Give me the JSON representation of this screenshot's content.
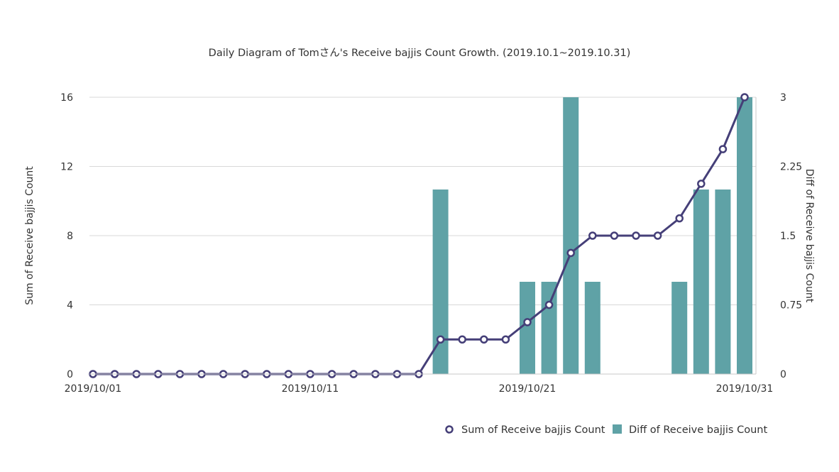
{
  "chart_data": {
    "type": "bar+line",
    "title": "Daily Diagram of Tomさん's Receive bajjis Count Growth. (2019.10.1~2019.10.31)",
    "x": [
      "2019/10/01",
      "2019/10/02",
      "2019/10/03",
      "2019/10/04",
      "2019/10/05",
      "2019/10/06",
      "2019/10/07",
      "2019/10/08",
      "2019/10/09",
      "2019/10/10",
      "2019/10/11",
      "2019/10/12",
      "2019/10/13",
      "2019/10/14",
      "2019/10/15",
      "2019/10/16",
      "2019/10/17",
      "2019/10/18",
      "2019/10/19",
      "2019/10/20",
      "2019/10/21",
      "2019/10/22",
      "2019/10/23",
      "2019/10/24",
      "2019/10/25",
      "2019/10/26",
      "2019/10/27",
      "2019/10/28",
      "2019/10/29",
      "2019/10/30",
      "2019/10/31"
    ],
    "x_tick_labels": [
      "2019/10/01",
      "2019/10/11",
      "2019/10/21",
      "2019/10/31"
    ],
    "series": [
      {
        "name": "Sum of Receive bajjis Count",
        "type": "line",
        "axis": "left",
        "color": "#453f78",
        "values": [
          0,
          0,
          0,
          0,
          0,
          0,
          0,
          0,
          0,
          0,
          0,
          0,
          0,
          0,
          0,
          0,
          2,
          2,
          2,
          2,
          3,
          4,
          7,
          8,
          8,
          8,
          8,
          9,
          11,
          13,
          16
        ]
      },
      {
        "name": "Diff of Receive bajjis Count",
        "type": "bar",
        "axis": "right",
        "color": "#5fa2a6",
        "values": [
          0,
          0,
          0,
          0,
          0,
          0,
          0,
          0,
          0,
          0,
          0,
          0,
          0,
          0,
          0,
          0,
          2,
          0,
          0,
          0,
          1,
          1,
          3,
          1,
          0,
          0,
          0,
          1,
          2,
          2,
          3
        ]
      }
    ],
    "y_left": {
      "label": "Sum of Receive bajjis Count",
      "ylim": [
        0,
        16
      ],
      "ticks": [
        0,
        4,
        8,
        12,
        16
      ]
    },
    "y_right": {
      "label": "Diff of Receive bajjis Count",
      "ylim": [
        0,
        3
      ],
      "ticks": [
        "0",
        "0.75",
        "1.5",
        "2.25",
        "3"
      ]
    },
    "grid": true,
    "legend_position": "bottom-right",
    "colors": {
      "line": "#453f78",
      "bar": "#5fa2a6",
      "grid": "#d9d9d9",
      "axis": "#c8c8c8",
      "text": "#333333"
    }
  }
}
